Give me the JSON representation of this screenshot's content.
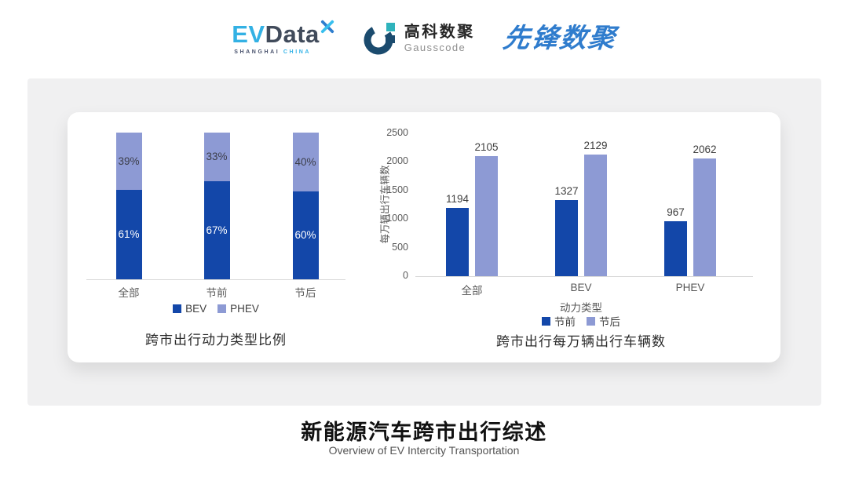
{
  "header": {
    "logos": {
      "evdata": {
        "ev": "EV",
        "data": "Data",
        "sub1": "SHANGHAI",
        "sub2": "CHINA"
      },
      "gausscode": {
        "cn": "高科数聚",
        "en": "Gausscode"
      },
      "xianfeng": {
        "text": "先锋数聚"
      }
    }
  },
  "chart_data": [
    {
      "type": "bar",
      "variant": "stacked-percent",
      "title": "跨市出行动力类型比例",
      "categories": [
        "全部",
        "节前",
        "节后"
      ],
      "series": [
        {
          "name": "BEV",
          "color": "#1347a9",
          "values": [
            61,
            67,
            60
          ],
          "labels": [
            "61%",
            "67%",
            "60%"
          ]
        },
        {
          "name": "PHEV",
          "color": "#8d9ad4",
          "values": [
            39,
            33,
            40
          ],
          "labels": [
            "39%",
            "33%",
            "40%"
          ]
        }
      ],
      "legend_position": "bottom",
      "ylim": [
        0,
        100
      ],
      "grid": false
    },
    {
      "type": "bar",
      "variant": "grouped",
      "title": "跨市出行每万辆出行车辆数",
      "categories": [
        "全部",
        "BEV",
        "PHEV"
      ],
      "xlabel": "动力类型",
      "ylabel": "每万辆出行车辆数",
      "yticks": [
        0,
        500,
        1000,
        1500,
        2000,
        2500
      ],
      "ylim": [
        0,
        2500
      ],
      "series": [
        {
          "name": "节前",
          "color": "#1347a9",
          "values": [
            1194,
            1327,
            967
          ]
        },
        {
          "name": "节后",
          "color": "#8d9ad4",
          "values": [
            2105,
            2129,
            2062
          ]
        }
      ],
      "legend_position": "bottom",
      "grid": false
    }
  ],
  "footer": {
    "title": "新能源汽车跨市出行综述",
    "subtitle": "Overview of EV Intercity Transportation"
  },
  "colors": {
    "dark_blue": "#1347a9",
    "light_blue": "#8d9ad4",
    "card_bg": "#f0f0f1",
    "panel_bg": "#ffffff",
    "axis_text": "#595959",
    "evdata_cyan": "#33b1e4",
    "evdata_slate": "#414b5b",
    "gauss_navy": "#1b4b6e",
    "gauss_teal": "#2fb3bc",
    "xianfeng_blue": "#2f7ccd"
  }
}
